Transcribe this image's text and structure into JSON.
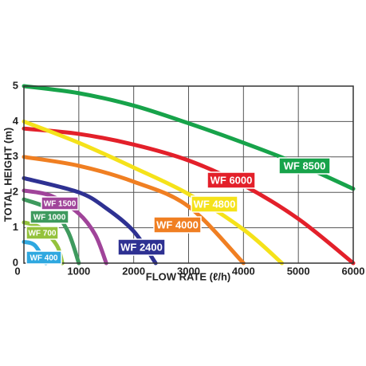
{
  "chart_data": {
    "type": "line",
    "x_label": "FLOW RATE (ℓ/h)",
    "y_label": "TOTAL HEIGHT (m)",
    "xlim": [
      0,
      6000
    ],
    "ylim": [
      0,
      5
    ],
    "xticks": [
      0,
      1000,
      2000,
      3000,
      4000,
      5000,
      6000
    ],
    "yticks": [
      0,
      1,
      2,
      3,
      4,
      5
    ],
    "grid": true,
    "series": [
      {
        "name": "WF 8500",
        "color": "#17a34a",
        "x": [
          0,
          1000,
          2000,
          3000,
          4000,
          5000,
          6000
        ],
        "values": [
          5,
          4.8,
          4.45,
          3.95,
          3.4,
          2.8,
          2.1
        ]
      },
      {
        "name": "WF 6000",
        "color": "#e3202a",
        "x": [
          0,
          1000,
          2000,
          3000,
          4000,
          5000,
          6000
        ],
        "values": [
          3.8,
          3.65,
          3.35,
          2.9,
          2.2,
          1.25,
          0
        ]
      },
      {
        "name": "WF 4800",
        "color": "#f5e21a",
        "x": [
          0,
          1000,
          2000,
          3000,
          4000,
          4700
        ],
        "values": [
          4,
          3.4,
          2.7,
          1.95,
          0.95,
          0
        ]
      },
      {
        "name": "WF 4000",
        "color": "#f07f22",
        "x": [
          0,
          1000,
          2000,
          3000,
          4000
        ],
        "values": [
          3,
          2.75,
          2.3,
          1.6,
          0
        ]
      },
      {
        "name": "WF 2400",
        "color": "#2e3192",
        "x": [
          0,
          1000,
          1500,
          2000,
          2400
        ],
        "values": [
          2.4,
          2,
          1.55,
          0.9,
          0
        ]
      },
      {
        "name": "WF 1500",
        "color": "#a0449a",
        "x": [
          0,
          500,
          1000,
          1300,
          1500
        ],
        "values": [
          2.05,
          1.9,
          1.4,
          0.8,
          0
        ]
      },
      {
        "name": "WF 1000",
        "color": "#3e9a5e",
        "x": [
          0,
          500,
          800,
          1000
        ],
        "values": [
          1.8,
          1.5,
          0.9,
          0
        ]
      },
      {
        "name": "WF 700",
        "color": "#94c23c",
        "x": [
          0,
          300,
          600,
          700
        ],
        "values": [
          1.15,
          1,
          0.5,
          0
        ]
      },
      {
        "name": "WF 400",
        "color": "#2fa8e0",
        "x": [
          0,
          200,
          400
        ],
        "values": [
          0.6,
          0.5,
          0
        ]
      }
    ]
  }
}
